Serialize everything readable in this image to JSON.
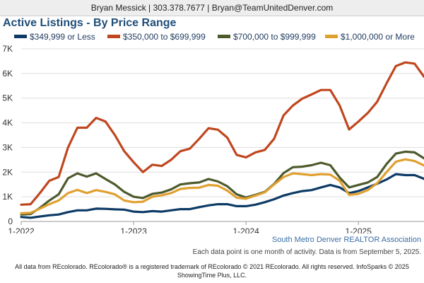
{
  "header": {
    "contact": "Bryan Messick | 303.378.7677 | Bryan@TeamUnitedDenver.com"
  },
  "footer": {
    "association": "South Metro Denver REALTOR Association",
    "note": "Each data point is one month of activity. Data is from September 5, 2025.",
    "legal_line1": "All data from REcolorado. REcolorado® is a registered trademark of REcolorado © 2021 REcolorado. All rights reserved. InfoSparks © 2025",
    "legal_line2": "ShowingTime Plus, LLC."
  },
  "chart_data": {
    "type": "line",
    "title": "Active Listings - By Price Range",
    "xlabel": "",
    "ylabel": "",
    "x": [
      "2022-01",
      "2022-02",
      "2022-03",
      "2022-04",
      "2022-05",
      "2022-06",
      "2022-07",
      "2022-08",
      "2022-09",
      "2022-10",
      "2022-11",
      "2022-12",
      "2023-01",
      "2023-02",
      "2023-03",
      "2023-04",
      "2023-05",
      "2023-06",
      "2023-07",
      "2023-08",
      "2023-09",
      "2023-10",
      "2023-11",
      "2023-12",
      "2024-01",
      "2024-02",
      "2024-03",
      "2024-04",
      "2024-05",
      "2024-06",
      "2024-07",
      "2024-08",
      "2024-09",
      "2024-10",
      "2024-11",
      "2024-12",
      "2025-01",
      "2025-02",
      "2025-03",
      "2025-04",
      "2025-05",
      "2025-06",
      "2025-07",
      "2025-08"
    ],
    "x_tick_labels": [
      "1-2022",
      "1-2023",
      "1-2024",
      "1-2025"
    ],
    "x_tick_dates": [
      "2022-01",
      "2023-01",
      "2024-01",
      "2025-01"
    ],
    "y_tick_labels": [
      "0",
      "1K",
      "2K",
      "3K",
      "4K",
      "5K",
      "6K",
      "7K"
    ],
    "ylim": [
      0,
      7000
    ],
    "grid": true,
    "legend_position": "top",
    "series": [
      {
        "name": "$349,999 or Less",
        "color": "#0d3b66",
        "values": [
          180,
          150,
          200,
          250,
          280,
          380,
          450,
          450,
          520,
          510,
          490,
          480,
          400,
          380,
          420,
          400,
          450,
          500,
          500,
          580,
          650,
          700,
          700,
          620,
          620,
          680,
          780,
          900,
          1050,
          1150,
          1230,
          1270,
          1380,
          1480,
          1380,
          1150,
          1230,
          1380,
          1530,
          1700,
          1920,
          1880,
          1880,
          1730
        ]
      },
      {
        "name": "$350,000 to $699,999",
        "color": "#c0461e",
        "values": [
          680,
          700,
          1150,
          1650,
          1800,
          3000,
          3800,
          3800,
          4200,
          4050,
          3500,
          2850,
          2400,
          2000,
          2300,
          2250,
          2500,
          2850,
          2950,
          3350,
          3780,
          3720,
          3400,
          2700,
          2600,
          2800,
          2900,
          3350,
          4300,
          4700,
          4980,
          5150,
          5330,
          5330,
          4700,
          3730,
          4050,
          4400,
          4850,
          5600,
          6300,
          6450,
          6400,
          5870
        ]
      },
      {
        "name": "$700,000 to $999,999",
        "color": "#4d5a2c",
        "values": [
          280,
          300,
          550,
          850,
          1100,
          1750,
          1950,
          1820,
          1950,
          1720,
          1500,
          1200,
          1000,
          950,
          1120,
          1170,
          1300,
          1500,
          1550,
          1580,
          1720,
          1620,
          1430,
          1100,
          970,
          1080,
          1200,
          1520,
          1960,
          2200,
          2220,
          2280,
          2380,
          2280,
          1780,
          1380,
          1480,
          1580,
          1800,
          2330,
          2750,
          2830,
          2800,
          2560
        ]
      },
      {
        "name": "$1,000,000 or More",
        "color": "#e0a030",
        "values": [
          330,
          350,
          520,
          700,
          850,
          1150,
          1280,
          1150,
          1270,
          1200,
          1100,
          850,
          780,
          800,
          1000,
          1060,
          1150,
          1320,
          1360,
          1370,
          1480,
          1450,
          1250,
          960,
          920,
          1050,
          1180,
          1500,
          1800,
          1950,
          1920,
          1880,
          1920,
          1900,
          1650,
          1080,
          1120,
          1270,
          1550,
          2000,
          2420,
          2520,
          2450,
          2270
        ]
      }
    ]
  }
}
